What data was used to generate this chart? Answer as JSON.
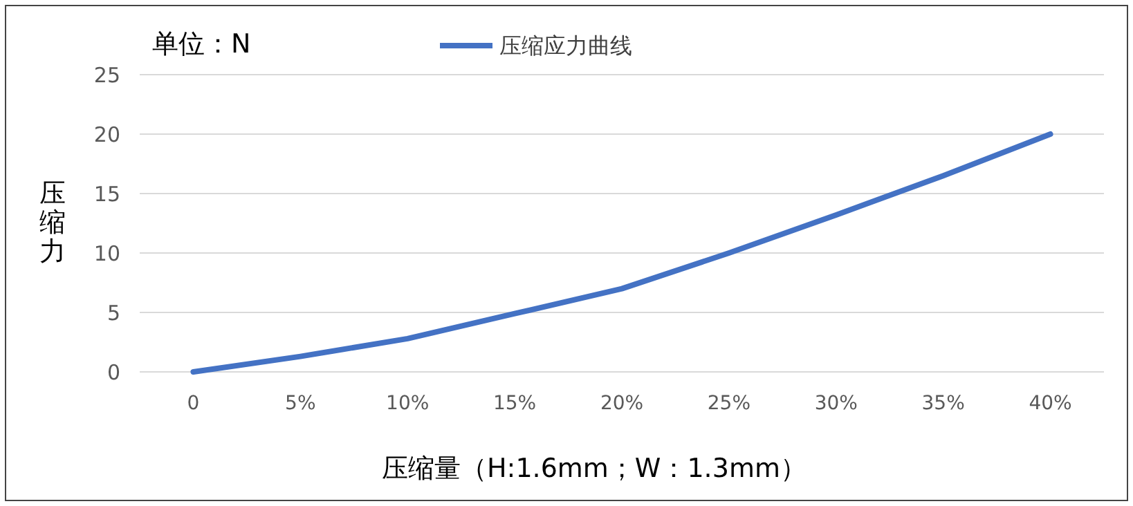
{
  "chart_data": {
    "type": "line",
    "categories": [
      "0",
      "5%",
      "10%",
      "15%",
      "20%",
      "25%",
      "30%",
      "35%",
      "40%"
    ],
    "series": [
      {
        "name": "压缩应力曲线",
        "color": "#4472c4",
        "values": [
          0,
          1.3,
          2.8,
          4.9,
          7,
          10,
          13.2,
          16.5,
          20
        ]
      }
    ],
    "ylim": [
      0,
      25
    ],
    "yticks": [
      0,
      5,
      10,
      15,
      20,
      25
    ],
    "grid": "y",
    "legend": "top",
    "marker": "none",
    "line_style": "solid",
    "xlabel": "压缩量（H:1.6mm；W：1.3mm）",
    "ylabel": "压缩力",
    "annotations": [
      "单位：N"
    ]
  }
}
